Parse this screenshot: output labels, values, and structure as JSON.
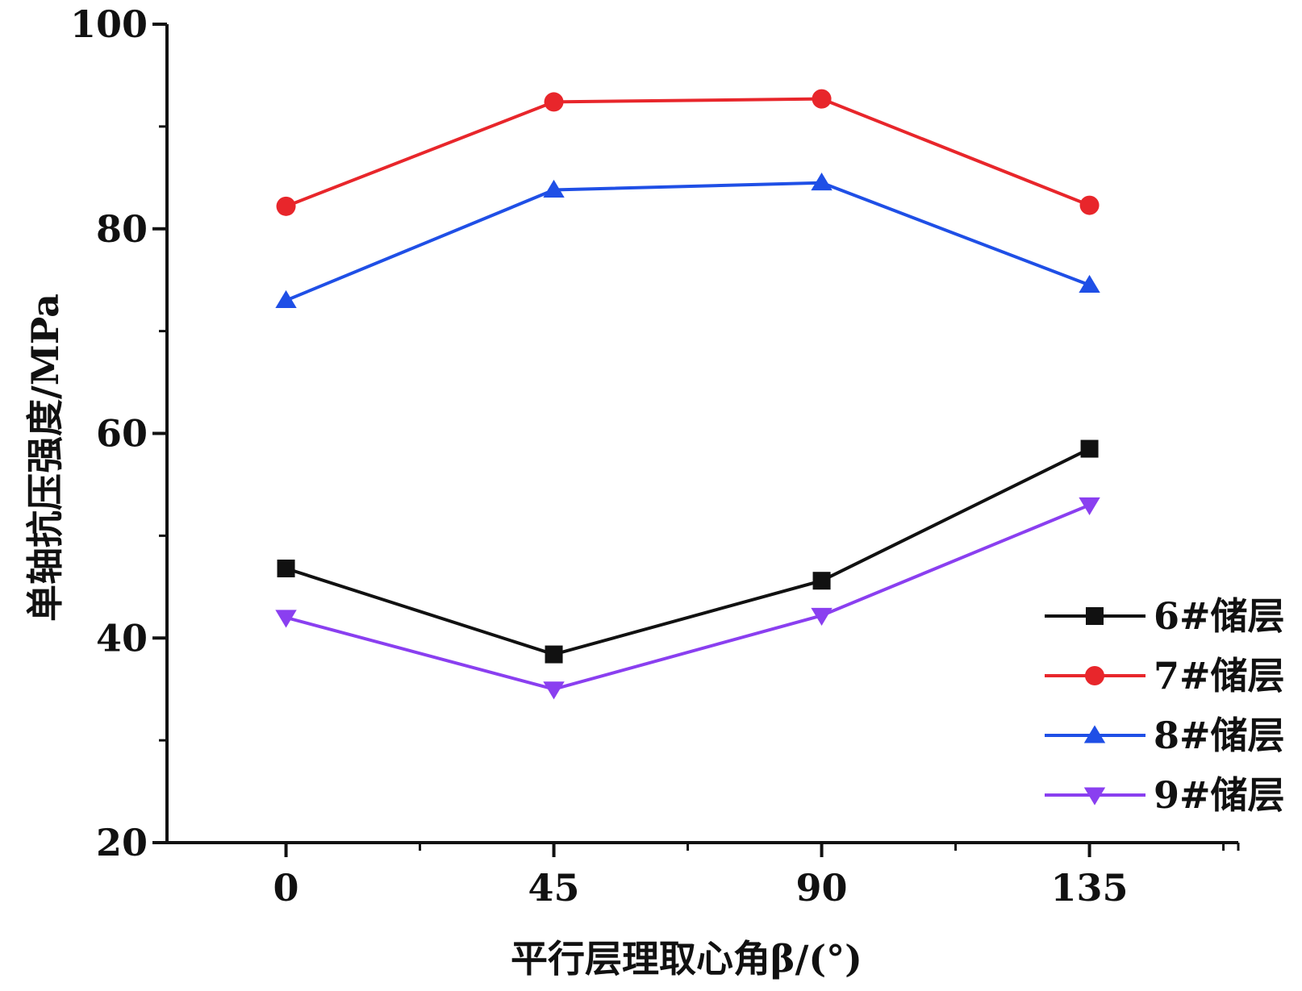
{
  "chart_data": {
    "type": "line",
    "xlabel": "平行层理取心角β/(°)",
    "ylabel": "单轴抗压强度/MPa",
    "x": [
      0,
      45,
      90,
      135
    ],
    "x_tick_labels": [
      "0",
      "45",
      "90",
      "135"
    ],
    "xlim": [
      -20,
      160
    ],
    "ylim": [
      20,
      100
    ],
    "y_ticks": [
      20,
      40,
      60,
      80,
      100
    ],
    "y_tick_labels": [
      "20",
      "40",
      "60",
      "80",
      "100"
    ],
    "grid": false,
    "legend": "right",
    "series": [
      {
        "name": "6#储层",
        "marker": "square",
        "color": "#111111",
        "values": [
          46.8,
          38.4,
          45.6,
          58.5
        ]
      },
      {
        "name": "7#储层",
        "marker": "circle",
        "color": "#e8262b",
        "values": [
          82.2,
          92.4,
          92.7,
          82.3
        ]
      },
      {
        "name": "8#储层",
        "marker": "triangle-up",
        "color": "#1f4fe6",
        "values": [
          73.0,
          83.8,
          84.5,
          74.5
        ]
      },
      {
        "name": "9#储层",
        "marker": "triangle-down",
        "color": "#8a3ff0",
        "values": [
          42.0,
          35.0,
          42.2,
          53.0
        ]
      }
    ]
  }
}
